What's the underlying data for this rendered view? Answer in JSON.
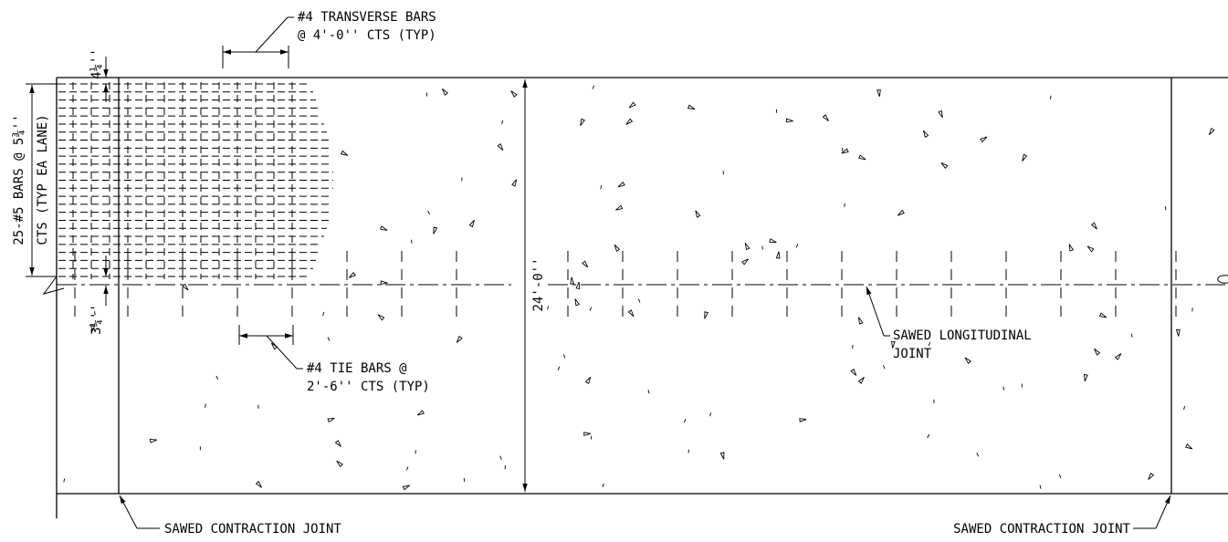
{
  "transverse_bars": {
    "line1": "#4 TRANSVERSE BARS",
    "line2": "@ 4'-0'' CTS (TYP)"
  },
  "top_cover": "4¼''",
  "longitudinal_bars": {
    "line1": "25-#5 BARS @ 5¾''",
    "line2": "CTS (TYP EA LANE)"
  },
  "bottom_cover": "3¼''",
  "slab_width": "24'-0''",
  "tie_bars": {
    "line1": "#4 TIE BARS @",
    "line2": "2'-6'' CTS (TYP)"
  },
  "longitudinal_joint": {
    "line1": "SAWED LONGITUDINAL",
    "line2": "JOINT"
  },
  "contraction_joints": [
    "SAWED CONTRACTION JOINT",
    "SAWED CONTRACTION JOINT"
  ]
}
